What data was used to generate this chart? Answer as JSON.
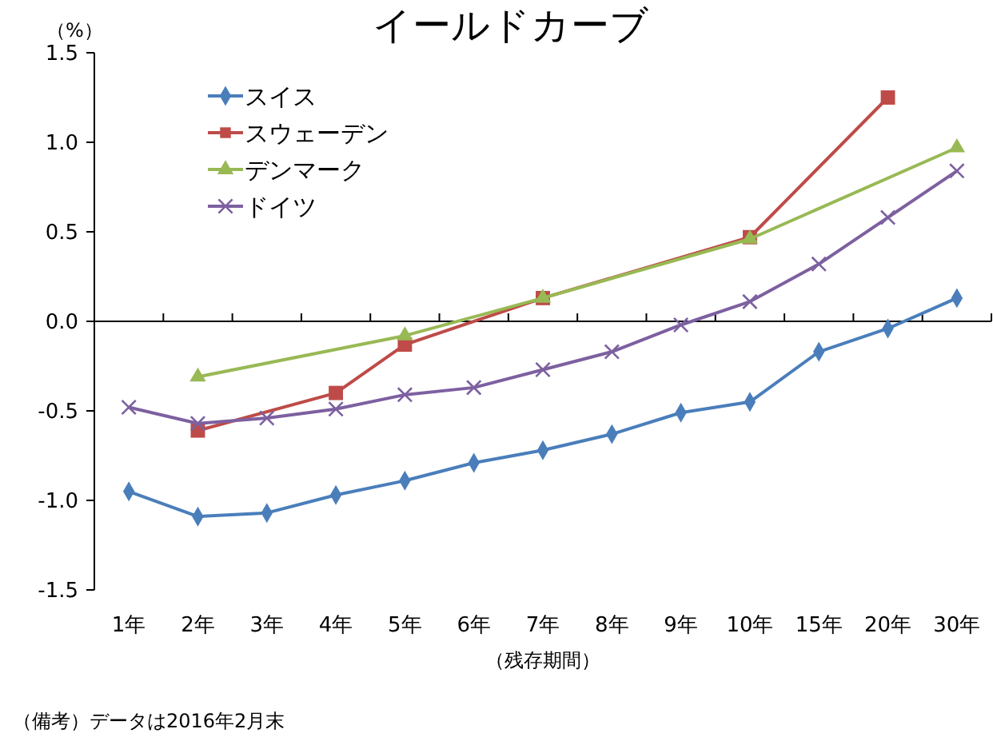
{
  "chart_data": {
    "type": "line",
    "title": "イールドカーブ",
    "ylabel": "（%）",
    "xlabel": "（残存期間）",
    "categories": [
      "1年",
      "2年",
      "3年",
      "4年",
      "5年",
      "6年",
      "7年",
      "8年",
      "9年",
      "10年",
      "15年",
      "20年",
      "30年"
    ],
    "ylim": [
      -1.5,
      1.5
    ],
    "yticks": [
      {
        "value": -1.5,
        "label": "-1.5"
      },
      {
        "value": -1,
        "label": "-1.0"
      },
      {
        "value": -0.5,
        "label": "-0.5"
      },
      {
        "value": 0,
        "label": "0.0"
      },
      {
        "value": 0.5,
        "label": "0.5"
      },
      {
        "value": 1,
        "label": "1.0"
      },
      {
        "value": 1.5,
        "label": "1.5"
      }
    ],
    "legend": "top left",
    "line_style": "solid",
    "series": [
      {
        "name": "スイス",
        "color": "#4a7ebb",
        "marker": "diamond",
        "values": [
          -0.95,
          -1.09,
          -1.07,
          -0.97,
          -0.89,
          -0.79,
          -0.72,
          -0.63,
          -0.51,
          -0.45,
          -0.17,
          -0.04,
          0.13
        ]
      },
      {
        "name": "スウェーデン",
        "color": "#be4b48",
        "marker": "square",
        "values": [
          null,
          -0.61,
          null,
          -0.4,
          -0.13,
          null,
          0.13,
          null,
          null,
          0.47,
          null,
          1.25,
          null
        ]
      },
      {
        "name": "デンマーク",
        "color": "#98b954",
        "marker": "triangle",
        "values": [
          null,
          -0.31,
          null,
          null,
          -0.08,
          null,
          0.13,
          null,
          null,
          0.46,
          null,
          null,
          0.97
        ]
      },
      {
        "name": "ドイツ",
        "color": "#7d60a0",
        "marker": "cross",
        "values": [
          -0.48,
          -0.57,
          -0.54,
          -0.49,
          -0.41,
          -0.37,
          -0.27,
          -0.17,
          -0.02,
          0.11,
          0.32,
          0.58,
          0.84
        ]
      }
    ],
    "annotations": [
      "（備考）データは2016年2月末"
    ]
  }
}
